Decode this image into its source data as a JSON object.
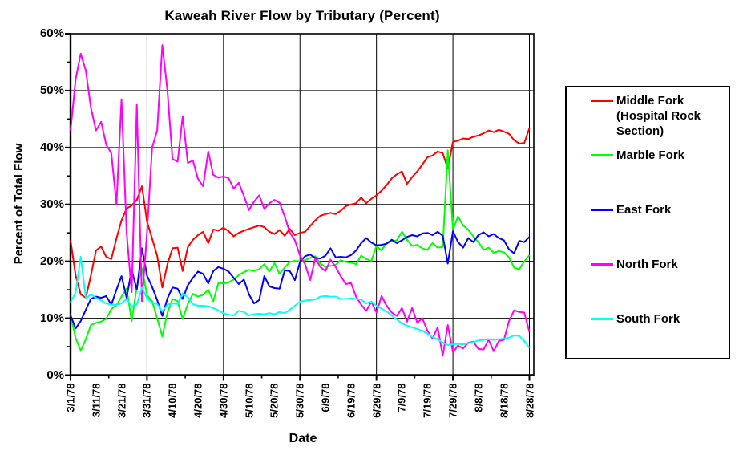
{
  "title": "Kaweah River Flow by Tributary (Percent)",
  "y_axis_title": "Percent of Total Flow",
  "x_axis_title": "Date",
  "colors": {
    "middle_fork": "#ff0000",
    "marble_fork": "#00ff00",
    "east_fork": "#0000ff",
    "north_fork": "#ff00ff",
    "south_fork": "#00ffff",
    "axis": "#000000",
    "background": "#ffffff"
  },
  "legend": {
    "items": [
      {
        "label": "Middle Fork (Hospital Rock Section)",
        "color": "#ff0000"
      },
      {
        "label": "Marble Fork",
        "color": "#00ff00"
      },
      {
        "label": "East Fork",
        "color": "#0000ff"
      },
      {
        "label": "North Fork",
        "color": "#ff00ff"
      },
      {
        "label": "South Fork",
        "color": "#00ffff"
      }
    ]
  },
  "chart_data": {
    "type": "line",
    "title": "Kaweah River Flow by Tributary (Percent)",
    "xlabel": "Date",
    "ylabel": "Percent of Total Flow",
    "ylim": [
      0,
      60
    ],
    "grid": true,
    "legend_position": "right",
    "y_tick_labels": [
      "0%",
      "10%",
      "20%",
      "30%",
      "40%",
      "50%",
      "60%"
    ],
    "y_tick_values": [
      0,
      10,
      20,
      30,
      40,
      50,
      60
    ],
    "y_minor_tick_values": [
      5,
      15,
      25,
      35,
      45,
      55
    ],
    "x_start_date": "3/1/78",
    "x_tick_labels": [
      {
        "label": "3/1/78",
        "day": 0
      },
      {
        "label": "3/11/78",
        "day": 10
      },
      {
        "label": "3/21/78",
        "day": 20
      },
      {
        "label": "3/31/78",
        "day": 30
      },
      {
        "label": "4/10/78",
        "day": 40
      },
      {
        "label": "4/20/78",
        "day": 50
      },
      {
        "label": "4/30/78",
        "day": 60
      },
      {
        "label": "5/10/78",
        "day": 70
      },
      {
        "label": "5/20/78",
        "day": 80
      },
      {
        "label": "5/30/78",
        "day": 90
      },
      {
        "label": "6/9/78",
        "day": 100
      },
      {
        "label": "6/19/78",
        "day": 110
      },
      {
        "label": "6/29/78",
        "day": 120
      },
      {
        "label": "7/9/78",
        "day": 130
      },
      {
        "label": "7/19/78",
        "day": 140
      },
      {
        "label": "7/29/78",
        "day": 150
      },
      {
        "label": "8/8/78",
        "day": 160
      },
      {
        "label": "8/18/78",
        "day": 170
      },
      {
        "label": "8/28/78",
        "day": 180
      }
    ],
    "x_gridline_days": [
      30,
      60,
      90,
      120,
      150,
      180
    ],
    "x_minor_tick_days": [
      15,
      45,
      75,
      105,
      135,
      165
    ],
    "sample_interval_days": 2,
    "series": [
      {
        "name": "Middle Fork (Hospital Rock Section)",
        "color": "#ff0000",
        "values": [
          23.7,
          17.5,
          14.2,
          13.6,
          17.5,
          21.9,
          22.6,
          20.8,
          20.4,
          24,
          27.2,
          29.3,
          29.8,
          30.8,
          33.2,
          27,
          24,
          21,
          15.4,
          19.5,
          22.3,
          22.4,
          18.3,
          22.5,
          23.8,
          24.6,
          25.2,
          23.2,
          25.6,
          25.4,
          25.9,
          25.3,
          24.4,
          25,
          25.4,
          25.7,
          26,
          26.3,
          26,
          25.2,
          24.8,
          25.5,
          24.5,
          25.7,
          24.6,
          25,
          25.2,
          26.2,
          27.2,
          28,
          28.3,
          28.5,
          28.3,
          28.9,
          29.7,
          30,
          30.2,
          31.2,
          30.2,
          31,
          31.6,
          32.4,
          33.4,
          34.6,
          35.3,
          35.8,
          33.6,
          34.8,
          35.8,
          37,
          38.3,
          38.6,
          39.3,
          39,
          36.3,
          41,
          41.2,
          41.6,
          41.5,
          41.9,
          42.1,
          42.5,
          43,
          42.7,
          43.1,
          42.8,
          42.4,
          41.3,
          40.7,
          40.8,
          43.4
        ]
      },
      {
        "name": "Marble Fork",
        "color": "#00ff00",
        "values": [
          10.7,
          6.5,
          4.3,
          6.3,
          8.8,
          9.2,
          9.4,
          9.9,
          11.6,
          12.3,
          13.8,
          15.2,
          9.5,
          15.5,
          18.8,
          14,
          13,
          10,
          6.8,
          11,
          13.4,
          13,
          9.9,
          12.5,
          14.3,
          13.8,
          14.1,
          15,
          13,
          16.2,
          16.1,
          16.3,
          16.8,
          17.6,
          18.1,
          18.5,
          18.3,
          18.6,
          19.5,
          18.2,
          19.7,
          17.8,
          18.9,
          19.9,
          20.1,
          20,
          20.2,
          20.6,
          20.9,
          19.6,
          19,
          19.2,
          19.4,
          20.2,
          19.9,
          19.8,
          19.5,
          21,
          20.4,
          20.1,
          22.7,
          21.9,
          23.3,
          23.5,
          23.7,
          25.2,
          23.8,
          22.7,
          22.9,
          22.3,
          22,
          23.2,
          22.4,
          22.5,
          39.5,
          25.5,
          27.9,
          26.3,
          25.6,
          24.4,
          23.4,
          22,
          22.4,
          21.5,
          21.8,
          21.6,
          20.7,
          18.9,
          18.6,
          20,
          21.1
        ]
      },
      {
        "name": "East Fork",
        "color": "#0000ff",
        "values": [
          10.5,
          8.2,
          9.5,
          11.5,
          13.4,
          13.8,
          13.6,
          13.9,
          12.4,
          15,
          17.4,
          13.6,
          18.5,
          15,
          22.3,
          17.5,
          15.5,
          13.2,
          10.4,
          13.5,
          15.4,
          15.2,
          13.4,
          15.8,
          17.1,
          18.2,
          17.8,
          16.1,
          18.3,
          19,
          18.7,
          18.2,
          17.1,
          16,
          16.8,
          14.2,
          12.6,
          13.2,
          17.4,
          15.6,
          15.3,
          15.2,
          18.4,
          18.3,
          16.7,
          19.9,
          20.9,
          21.2,
          20.6,
          20.5,
          21,
          22.3,
          20.7,
          20.8,
          20.7,
          21.1,
          21.9,
          23.2,
          24.1,
          23.3,
          22.8,
          22.9,
          23.1,
          23.8,
          23.2,
          23.7,
          24.3,
          24.6,
          24.4,
          24.9,
          25,
          24.6,
          25.2,
          24.5,
          19.6,
          25.3,
          23.4,
          22.4,
          24.1,
          23.4,
          24.6,
          25.1,
          24.4,
          24.8,
          24.1,
          23.7,
          22.1,
          21.4,
          23.6,
          23.4,
          24.3
        ]
      },
      {
        "name": "North Fork",
        "color": "#ff00ff",
        "values": [
          43,
          52,
          56.5,
          53.5,
          47,
          43,
          44.5,
          40.5,
          39,
          30,
          48.5,
          25,
          14.6,
          47.5,
          13,
          25,
          40,
          43,
          58,
          50,
          38,
          37.5,
          45.5,
          37.3,
          37.7,
          34.5,
          33.2,
          39.3,
          35.2,
          34.7,
          34.9,
          34.6,
          32.8,
          33.8,
          31.5,
          29,
          30.5,
          31.6,
          29.2,
          30.2,
          30.8,
          30.3,
          27.9,
          25.1,
          23.7,
          21,
          19.5,
          16.7,
          20.5,
          19,
          18.3,
          20.3,
          19,
          17.4,
          16,
          16.2,
          13.8,
          12.4,
          11.3,
          12.9,
          11,
          13.9,
          12.2,
          11,
          10.4,
          11.8,
          9.4,
          11.8,
          9.2,
          10,
          7.8,
          6.4,
          8.4,
          3.4,
          8.8,
          4,
          5.2,
          4.7,
          5.7,
          5.9,
          4.6,
          4.5,
          6.2,
          4.2,
          6,
          6.2,
          9.5,
          11.4,
          11.1,
          11,
          7.6
        ]
      },
      {
        "name": "South Fork",
        "color": "#00ffff",
        "values": [
          12.8,
          14.5,
          20.8,
          13.5,
          14.2,
          13.6,
          13.1,
          12.6,
          12.4,
          12.4,
          12.6,
          13.4,
          12.1,
          12.4,
          15.4,
          13.5,
          12.7,
          12.5,
          11.2,
          12.4,
          12.6,
          12.5,
          14.4,
          13.7,
          12.5,
          12.2,
          12.2,
          12.1,
          11.8,
          11.4,
          10.9,
          10.6,
          10.5,
          11.3,
          11.1,
          10.5,
          10.7,
          10.8,
          10.7,
          10.9,
          10.7,
          11.1,
          10.9,
          11.5,
          12.2,
          12.9,
          13.1,
          13.2,
          13.3,
          13.8,
          13.9,
          13.8,
          13.8,
          13.4,
          13.4,
          13.5,
          13.4,
          13.3,
          12.6,
          12.9,
          12.2,
          11.7,
          11.2,
          10.5,
          9.8,
          9.1,
          8.7,
          8.4,
          8.1,
          7.8,
          7.3,
          6.7,
          6.3,
          5.7,
          5.3,
          5.4,
          5.5,
          5.4,
          5.6,
          5.8,
          6.1,
          6.2,
          6.3,
          6.2,
          6.3,
          6.4,
          6.6,
          7,
          6.9,
          6,
          4.8
        ]
      }
    ]
  }
}
